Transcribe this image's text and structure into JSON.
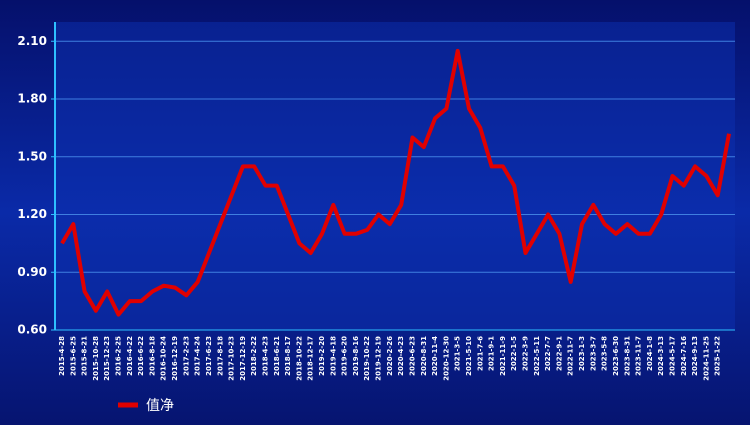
{
  "chart_data": {
    "type": "line",
    "categories": [
      "2015-4-28",
      "2015-6-25",
      "2015-8-21",
      "2015-10-28",
      "2015-12-23",
      "2016-2-25",
      "2016-4-22",
      "2016-6-22",
      "2016-8-18",
      "2016-10-24",
      "2016-12-19",
      "2017-2-23",
      "2017-4-24",
      "2017-6-23",
      "2017-8-18",
      "2017-10-23",
      "2017-12-19",
      "2018-2-22",
      "2018-4-23",
      "2018-6-21",
      "2018-8-17",
      "2018-10-22",
      "2018-12-17",
      "2019-2-20",
      "2019-4-18",
      "2019-6-20",
      "2019-8-16",
      "2019-10-22",
      "2019-12-19",
      "2020-2-26",
      "2020-4-23",
      "2020-6-23",
      "2020-8-31",
      "2020-11-4",
      "2020-12-30",
      "2021-3-5",
      "2021-5-10",
      "2021-7-6",
      "2021-9-1",
      "2021-11-9",
      "2022-1-5",
      "2022-3-9",
      "2022-5-11",
      "2022-7-7",
      "2022-9-1",
      "2022-11-7",
      "2023-1-3",
      "2023-3-7",
      "2023-5-8",
      "2023-6-30",
      "2023-8-31",
      "2023-11-7",
      "2024-1-8",
      "2024-3-13",
      "2024-5-17",
      "2024-7-16",
      "2024-9-13",
      "2024-11-25",
      "2025-1-22",
      null
    ],
    "series": [
      {
        "name": "值净",
        "color": "#e00000",
        "values": [
          1.05,
          1.15,
          0.8,
          0.7,
          0.8,
          0.68,
          0.75,
          0.75,
          0.8,
          0.83,
          0.82,
          0.78,
          0.85,
          1.0,
          1.15,
          1.3,
          1.45,
          1.45,
          1.35,
          1.35,
          1.2,
          1.05,
          1.0,
          1.1,
          1.25,
          1.1,
          1.1,
          1.12,
          1.2,
          1.15,
          1.25,
          1.6,
          1.55,
          1.7,
          1.75,
          2.05,
          1.75,
          1.65,
          1.45,
          1.45,
          1.35,
          1.0,
          1.1,
          1.2,
          1.1,
          0.85,
          1.15,
          1.25,
          1.15,
          1.1,
          1.15,
          1.1,
          1.1,
          1.2,
          1.4,
          1.35,
          1.45,
          1.4,
          1.3,
          1.62
        ]
      }
    ],
    "ylim": [
      0.6,
      2.2
    ],
    "yticks": [
      {
        "value": 0.6,
        "label": "0.60"
      },
      {
        "value": 0.9,
        "label": "0.90"
      },
      {
        "value": 1.2,
        "label": "1.20"
      },
      {
        "value": 1.5,
        "label": "1.50"
      },
      {
        "value": 1.8,
        "label": "1.80"
      },
      {
        "value": 2.1,
        "label": "2.10"
      }
    ],
    "grid": true
  }
}
